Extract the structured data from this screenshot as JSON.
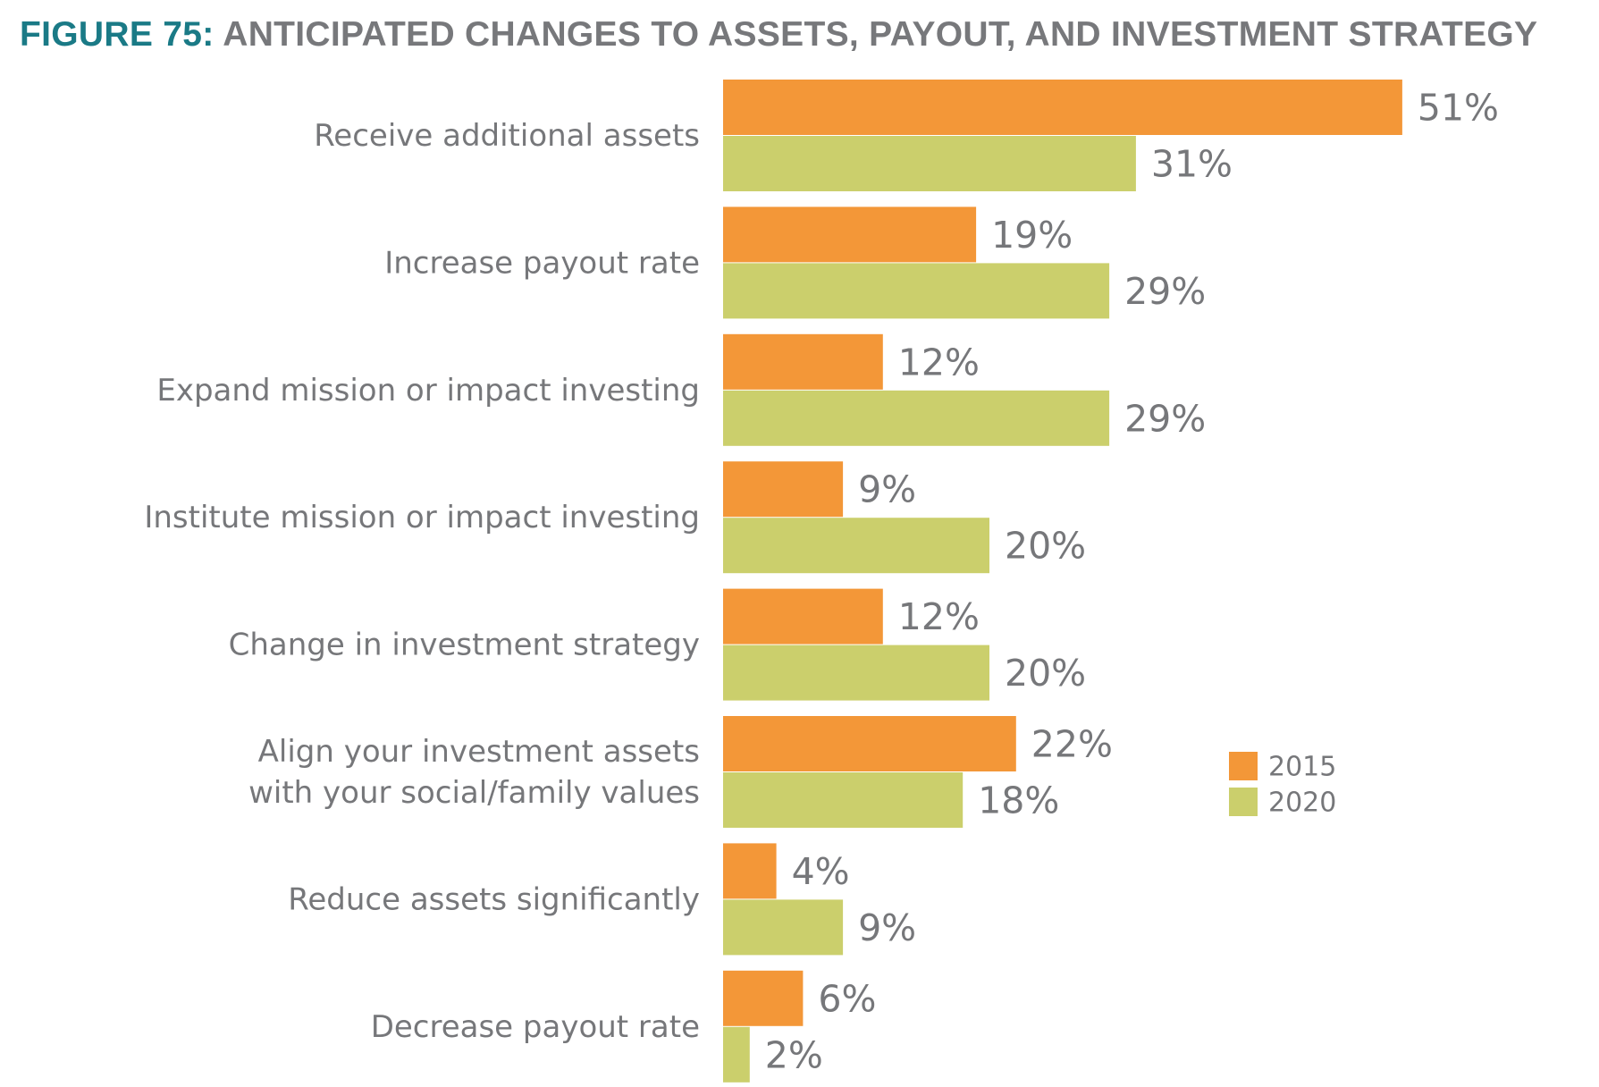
{
  "title": {
    "figure_number": "FIGURE 75:",
    "text": "ANTICIPATED CHANGES TO ASSETS, PAYOUT, AND INVESTMENT STRATEGY"
  },
  "colors": {
    "title_accent": "#1a7a86",
    "text_gray": "#76777a",
    "series_2015": "#f39738",
    "series_2020": "#cbcf6c"
  },
  "chart_data": {
    "type": "bar",
    "orientation": "horizontal",
    "title": "ANTICIPATED CHANGES TO ASSETS, PAYOUT, AND INVESTMENT STRATEGY",
    "categories": [
      [
        "Receive additional assets"
      ],
      [
        "Increase payout rate"
      ],
      [
        "Expand mission or impact investing"
      ],
      [
        "Institute mission or impact investing"
      ],
      [
        "Change in investment strategy"
      ],
      [
        "Align your investment assets",
        "with your social/family values"
      ],
      [
        "Reduce assets significantly"
      ],
      [
        "Decrease payout rate"
      ]
    ],
    "series": [
      {
        "name": "2015",
        "color": "#f39738",
        "values": [
          51,
          19,
          12,
          9,
          12,
          22,
          4,
          6
        ],
        "labels": [
          "51%",
          "19%",
          "12%",
          "9%",
          "12%",
          "22%",
          "4%",
          "6%"
        ]
      },
      {
        "name": "2020",
        "color": "#cbcf6c",
        "values": [
          31,
          29,
          29,
          20,
          20,
          18,
          9,
          2
        ],
        "labels": [
          "31%",
          "29%",
          "29%",
          "20%",
          "20%",
          "18%",
          "9%",
          "2%"
        ]
      }
    ],
    "unit": "%",
    "grid": false,
    "legend_position": "right"
  }
}
